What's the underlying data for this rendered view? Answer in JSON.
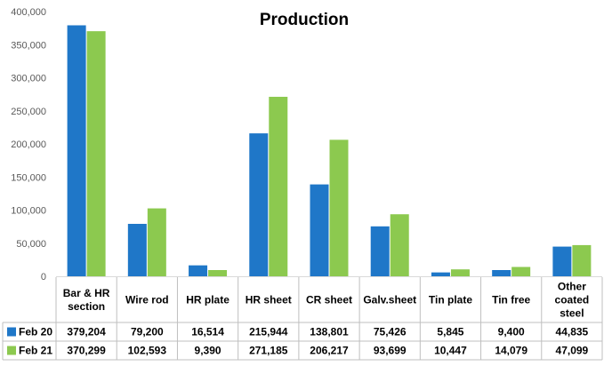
{
  "chart_data": {
    "type": "bar",
    "title": "Production",
    "categories": [
      [
        "Bar & HR",
        "section"
      ],
      [
        "Wire rod"
      ],
      [
        "HR plate"
      ],
      [
        "HR sheet"
      ],
      [
        "CR sheet"
      ],
      [
        "Galv.sheet"
      ],
      [
        "Tin plate"
      ],
      [
        "Tin free"
      ],
      [
        "Other",
        "coated",
        "steel"
      ]
    ],
    "series": [
      {
        "name": "Feb 20",
        "color": "#1F77C8",
        "values": [
          379204,
          79200,
          16514,
          215944,
          138801,
          75426,
          5845,
          9400,
          44835
        ],
        "labels": [
          "379,204",
          "79,200",
          "16,514",
          "215,944",
          "138,801",
          "75,426",
          "5,845",
          "9,400",
          "44,835"
        ]
      },
      {
        "name": "Feb 21",
        "color": "#8CC94F",
        "values": [
          370299,
          102593,
          9390,
          271185,
          206217,
          93699,
          10447,
          14079,
          47099
        ],
        "labels": [
          "370,299",
          "102,593",
          "9,390",
          "271,185",
          "206,217",
          "93,699",
          "10,447",
          "14,079",
          "47,099"
        ]
      }
    ],
    "ylim": [
      0,
      400000
    ],
    "yticks": [
      0,
      50000,
      100000,
      150000,
      200000,
      250000,
      300000,
      350000,
      400000
    ],
    "ytick_labels": [
      "0",
      "50,000",
      "100,000",
      "150,000",
      "200,000",
      "250,000",
      "300,000",
      "350,000",
      "400,000"
    ],
    "grid": false,
    "legend": "data-table"
  }
}
